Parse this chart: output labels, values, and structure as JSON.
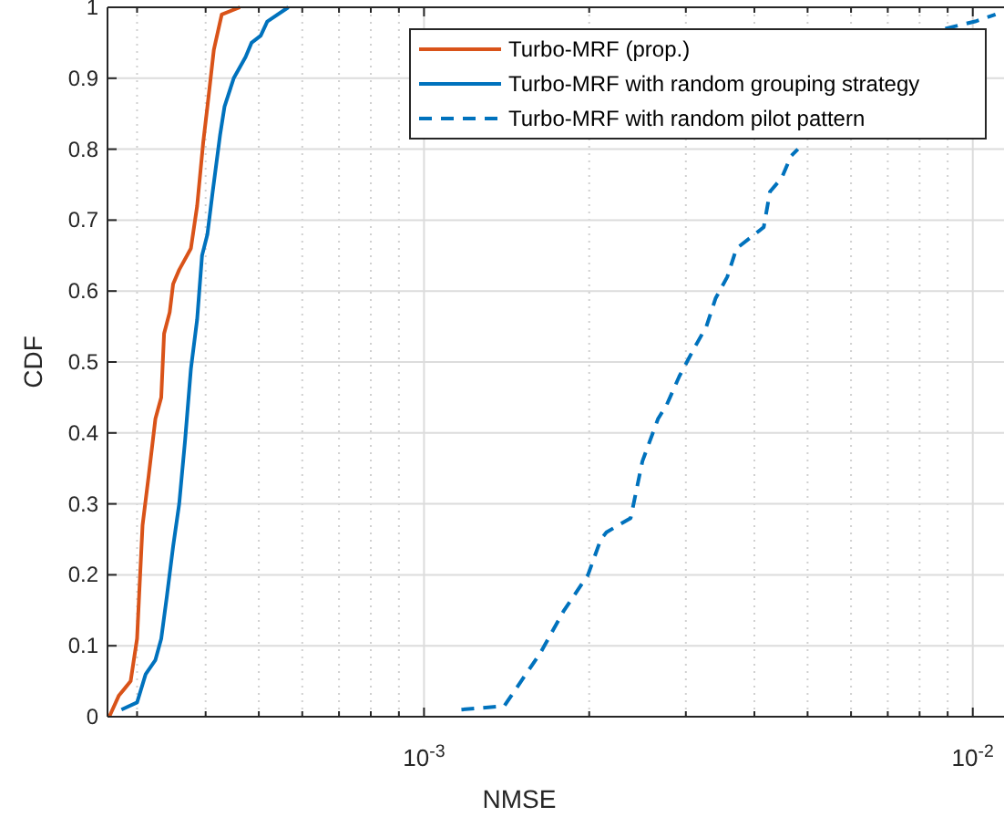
{
  "chart_data": {
    "type": "line",
    "xlabel": "NMSE",
    "ylabel": "CDF",
    "log": "x",
    "xlim": [
      0.000265,
      0.0114
    ],
    "ylim": [
      0,
      1
    ],
    "xticks": [
      {
        "value": 0.0003,
        "label": null
      },
      {
        "value": 0.0004,
        "label": null
      },
      {
        "value": 0.0005,
        "label": null
      },
      {
        "value": 0.0006,
        "label": null
      },
      {
        "value": 0.0007,
        "label": null
      },
      {
        "value": 0.0008,
        "label": null
      },
      {
        "value": 0.0009,
        "label": null
      },
      {
        "value": 0.001,
        "label": "10$^{-3}$"
      },
      {
        "value": 0.002,
        "label": null
      },
      {
        "value": 0.003,
        "label": null
      },
      {
        "value": 0.004,
        "label": null
      },
      {
        "value": 0.005,
        "label": null
      },
      {
        "value": 0.006,
        "label": null
      },
      {
        "value": 0.007,
        "label": null
      },
      {
        "value": 0.008,
        "label": null
      },
      {
        "value": 0.009,
        "label": null
      },
      {
        "value": 0.01,
        "label": "10$^{-2}$"
      }
    ],
    "yticks": [
      0,
      0.1,
      0.2,
      0.3,
      0.4,
      0.5,
      0.6,
      0.7,
      0.8,
      0.9,
      1
    ],
    "grid": true,
    "legend": "top right",
    "marker": "none",
    "series": [
      {
        "name": "Turbo-MRF (prop.)",
        "color": "#d95319",
        "line_style": "solid",
        "x": [
          0.000267,
          0.000278,
          0.000285,
          0.000292,
          0.0003,
          0.000303,
          0.000307,
          0.000315,
          0.000324,
          0.000332,
          0.000336,
          0.000344,
          0.000349,
          0.000358,
          0.000376,
          0.000386,
          0.000396,
          0.000403,
          0.000414,
          0.000428,
          0.000462
        ],
        "values": [
          0,
          0.03,
          0.04,
          0.05,
          0.11,
          0.18,
          0.27,
          0.34,
          0.42,
          0.45,
          0.54,
          0.57,
          0.61,
          0.63,
          0.66,
          0.72,
          0.81,
          0.86,
          0.94,
          0.99,
          1
        ]
      },
      {
        "name": "Turbo-MRF with random grouping strategy",
        "color": "#0072bd",
        "line_style": "solid",
        "x": [
          0.000281,
          0.0003,
          0.000311,
          0.000324,
          0.000332,
          0.00034,
          0.000349,
          0.000358,
          0.000367,
          0.000376,
          0.000386,
          0.000394,
          0.000403,
          0.000412,
          0.000425,
          0.000433,
          0.00045,
          0.000473,
          0.000485,
          0.000504,
          0.000518,
          0.000566
        ],
        "values": [
          0.01,
          0.02,
          0.06,
          0.08,
          0.11,
          0.17,
          0.24,
          0.3,
          0.39,
          0.49,
          0.56,
          0.65,
          0.68,
          0.74,
          0.82,
          0.86,
          0.9,
          0.93,
          0.95,
          0.96,
          0.98,
          1
        ]
      },
      {
        "name": "Turbo-MRF with random pilot pattern",
        "color": "#0072bd",
        "line_style": "dashed",
        "x": [
          0.00117,
          0.0014,
          0.00163,
          0.0018,
          0.00199,
          0.0021,
          0.00215,
          0.00238,
          0.0025,
          0.00267,
          0.00277,
          0.00292,
          0.00311,
          0.00327,
          0.0034,
          0.00357,
          0.00371,
          0.00416,
          0.00427,
          0.00449,
          0.00466,
          0.0048,
          0.007,
          0.00891,
          0.0101,
          0.011
        ],
        "values": [
          0.01,
          0.015,
          0.09,
          0.15,
          0.2,
          0.25,
          0.26,
          0.28,
          0.36,
          0.42,
          0.44,
          0.48,
          0.52,
          0.55,
          0.59,
          0.62,
          0.66,
          0.69,
          0.74,
          0.76,
          0.79,
          0.8,
          null,
          0.97,
          0.98,
          0.99
        ]
      }
    ]
  }
}
